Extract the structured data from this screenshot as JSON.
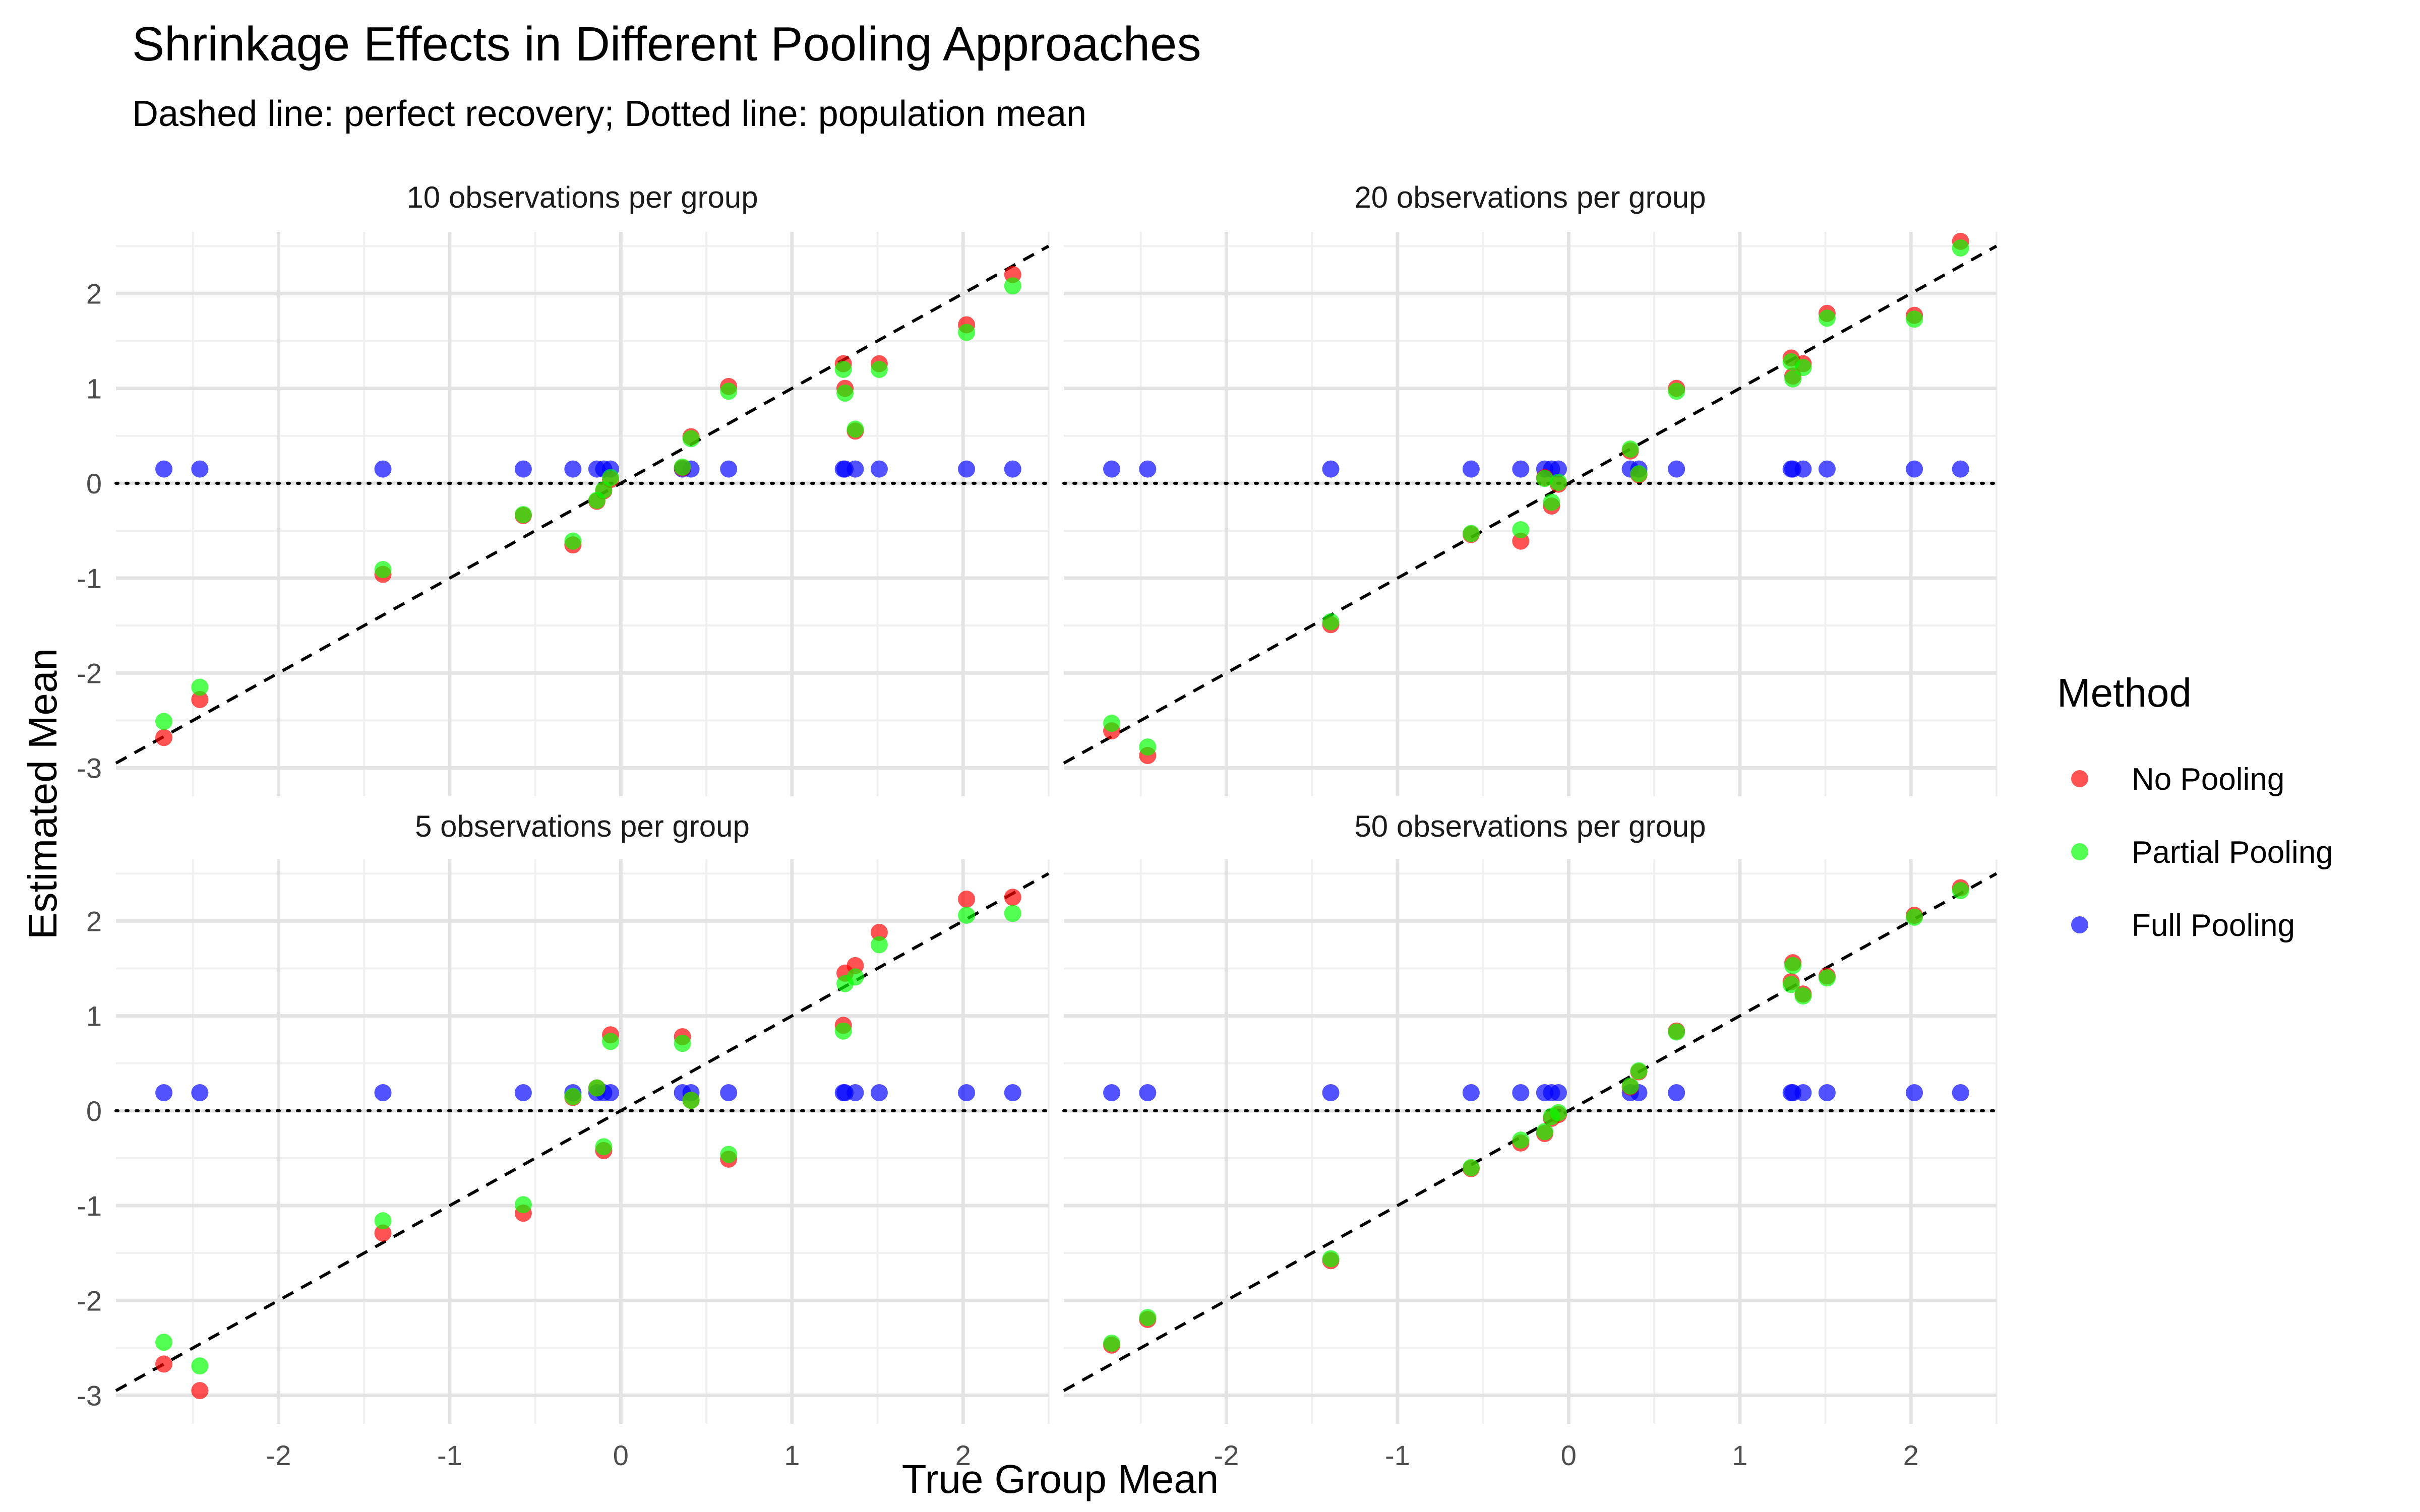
{
  "chart_data": {
    "type": "scatter",
    "title": "Shrinkage Effects in Different Pooling Approaches",
    "subtitle": "Dashed line: perfect recovery; Dotted line: population mean",
    "xlabel": "True Group Mean",
    "ylabel": "Estimated Mean",
    "xlim": [
      -2.95,
      2.5
    ],
    "ylim": [
      -3.3,
      2.65
    ],
    "x_ticks": [
      -2,
      -1,
      0,
      1,
      2
    ],
    "y_ticks": [
      -3,
      -2,
      -1,
      0,
      1,
      2
    ],
    "x_tick_labels": [
      "-2",
      "-1",
      "0",
      "1",
      "2"
    ],
    "y_tick_labels": [
      "-3",
      "-2",
      "-1",
      "0",
      "1",
      "2"
    ],
    "grid": true,
    "legend": {
      "title": "Method",
      "position": "right",
      "entries": [
        {
          "name": "No Pooling",
          "color": "#ff0000"
        },
        {
          "name": "Partial Pooling",
          "color": "#00ff00"
        },
        {
          "name": "Full Pooling",
          "color": "#0000ff"
        }
      ]
    },
    "reference_lines": {
      "perfect_recovery": {
        "style": "dashed",
        "slope": 1,
        "intercept": 0
      },
      "population_mean": {
        "style": "dotted",
        "y": 0
      }
    },
    "true_means": [
      -2.67,
      -2.46,
      -1.39,
      -0.57,
      -0.28,
      -0.14,
      -0.1,
      -0.06,
      0.36,
      0.41,
      0.63,
      1.3,
      1.31,
      1.37,
      1.51,
      2.02,
      2.29
    ],
    "panels": [
      {
        "label": "10 observations per group",
        "series": [
          {
            "name": "No Pooling",
            "y": [
              -2.68,
              -2.28,
              -0.96,
              -0.34,
              -0.65,
              -0.19,
              -0.08,
              0.04,
              0.16,
              0.49,
              1.02,
              1.26,
              1.0,
              0.55,
              1.26,
              1.67,
              2.2
            ]
          },
          {
            "name": "Partial Pooling",
            "y": [
              -2.51,
              -2.15,
              -0.91,
              -0.33,
              -0.61,
              -0.18,
              -0.07,
              0.06,
              0.17,
              0.47,
              0.97,
              1.2,
              0.95,
              0.57,
              1.2,
              1.59,
              2.08
            ]
          },
          {
            "name": "Full Pooling",
            "y": [
              0.15,
              0.15,
              0.15,
              0.15,
              0.15,
              0.15,
              0.15,
              0.15,
              0.15,
              0.15,
              0.15,
              0.15,
              0.15,
              0.15,
              0.15,
              0.15,
              0.15
            ]
          }
        ]
      },
      {
        "label": "20 observations per group",
        "series": [
          {
            "name": "No Pooling",
            "y": [
              -2.61,
              -2.87,
              -1.49,
              -0.54,
              -0.61,
              0.06,
              -0.24,
              -0.01,
              0.34,
              0.09,
              1.0,
              1.32,
              1.13,
              1.26,
              1.79,
              1.77,
              2.55
            ]
          },
          {
            "name": "Partial Pooling",
            "y": [
              -2.53,
              -2.78,
              -1.46,
              -0.53,
              -0.49,
              0.05,
              -0.2,
              0.01,
              0.36,
              0.1,
              0.97,
              1.28,
              1.1,
              1.22,
              1.74,
              1.73,
              2.48
            ]
          },
          {
            "name": "Full Pooling",
            "y": [
              0.15,
              0.15,
              0.15,
              0.15,
              0.15,
              0.15,
              0.15,
              0.15,
              0.15,
              0.15,
              0.15,
              0.15,
              0.15,
              0.15,
              0.15,
              0.15,
              0.15
            ]
          }
        ]
      },
      {
        "label": "5 observations per group",
        "series": [
          {
            "name": "No Pooling",
            "y": [
              -2.67,
              -2.95,
              -1.29,
              -1.08,
              0.14,
              0.24,
              -0.42,
              0.8,
              0.78,
              0.11,
              -0.51,
              0.9,
              1.45,
              1.53,
              1.88,
              2.23,
              2.25
            ]
          },
          {
            "name": "Partial Pooling",
            "y": [
              -2.44,
              -2.69,
              -1.16,
              -0.99,
              0.15,
              0.24,
              -0.38,
              0.73,
              0.71,
              0.11,
              -0.46,
              0.84,
              1.34,
              1.41,
              1.75,
              2.06,
              2.08
            ]
          },
          {
            "name": "Full Pooling",
            "y": [
              0.19,
              0.19,
              0.19,
              0.19,
              0.19,
              0.19,
              0.19,
              0.19,
              0.19,
              0.19,
              0.19,
              0.19,
              0.19,
              0.19,
              0.19,
              0.19,
              0.19
            ]
          }
        ]
      },
      {
        "label": "50 observations per group",
        "series": [
          {
            "name": "No Pooling",
            "y": [
              -2.47,
              -2.2,
              -1.58,
              -0.61,
              -0.34,
              -0.24,
              -0.08,
              -0.04,
              0.25,
              0.41,
              0.84,
              1.36,
              1.56,
              1.23,
              1.42,
              2.06,
              2.35
            ]
          },
          {
            "name": "Partial Pooling",
            "y": [
              -2.45,
              -2.18,
              -1.56,
              -0.6,
              -0.31,
              -0.22,
              -0.06,
              -0.02,
              0.26,
              0.42,
              0.83,
              1.33,
              1.53,
              1.21,
              1.4,
              2.04,
              2.32
            ]
          },
          {
            "name": "Full Pooling",
            "y": [
              0.19,
              0.19,
              0.19,
              0.19,
              0.19,
              0.19,
              0.19,
              0.19,
              0.19,
              0.19,
              0.19,
              0.19,
              0.19,
              0.19,
              0.19,
              0.19,
              0.19
            ]
          }
        ]
      }
    ]
  }
}
